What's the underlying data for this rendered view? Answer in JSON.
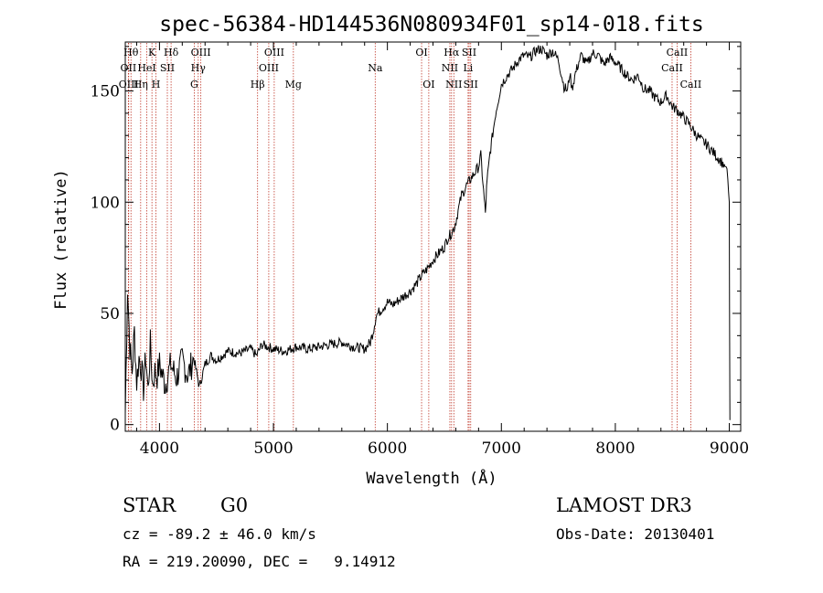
{
  "chart_data": {
    "type": "line",
    "title": "spec-56384-HD144536N080934F01_sp14-018.fits",
    "xlabel": "Wavelength (Å)",
    "ylabel": "Flux (relative)",
    "xlim": [
      3700,
      9100
    ],
    "ylim": [
      -3,
      172
    ],
    "xticks": [
      4000,
      5000,
      6000,
      7000,
      8000,
      9000
    ],
    "yticks": [
      0,
      50,
      100,
      150
    ],
    "grid": false,
    "series": [
      {
        "name": "flux",
        "x": [
          3700,
          3720,
          3740,
          3760,
          3780,
          3800,
          3820,
          3840,
          3860,
          3880,
          3900,
          3920,
          3940,
          3960,
          3980,
          4000,
          4050,
          4100,
          4150,
          4200,
          4250,
          4300,
          4350,
          4400,
          4450,
          4500,
          4600,
          4700,
          4800,
          4850,
          4900,
          5000,
          5100,
          5200,
          5300,
          5400,
          5500,
          5600,
          5700,
          5800,
          5850,
          5880,
          5900,
          5950,
          6000,
          6050,
          6100,
          6150,
          6200,
          6250,
          6300,
          6350,
          6400,
          6450,
          6500,
          6530,
          6560,
          6590,
          6620,
          6650,
          6700,
          6750,
          6800,
          6820,
          6850,
          6860,
          6870,
          6880,
          6900,
          6950,
          7000,
          7050,
          7100,
          7150,
          7200,
          7250,
          7300,
          7350,
          7400,
          7450,
          7500,
          7550,
          7580,
          7600,
          7620,
          7650,
          7680,
          7700,
          7750,
          7800,
          7850,
          7900,
          7950,
          8000,
          8050,
          8100,
          8150,
          8200,
          8250,
          8300,
          8350,
          8400,
          8450,
          8500,
          8550,
          8600,
          8650,
          8700,
          8750,
          8800,
          8850,
          8900,
          8950,
          8980,
          9000,
          9005
        ],
        "y": [
          5,
          62,
          35,
          24,
          42,
          19,
          30,
          26,
          16,
          31,
          15,
          36,
          18,
          24,
          22,
          27,
          18,
          27,
          21,
          29,
          22,
          30,
          17,
          27,
          31,
          29,
          33,
          32,
          34,
          31,
          36,
          34,
          33,
          35,
          34,
          35,
          36,
          37,
          35,
          34,
          37,
          43,
          49,
          52,
          55,
          54,
          56,
          58,
          60,
          63,
          67,
          70,
          74,
          77,
          80,
          84,
          86,
          89,
          96,
          103,
          108,
          112,
          116,
          121,
          101,
          95,
          106,
          112,
          122,
          140,
          153,
          157,
          160,
          164,
          166,
          165,
          168,
          169,
          166,
          168,
          164,
          152,
          150,
          158,
          151,
          158,
          163,
          166,
          162,
          167,
          166,
          162,
          165,
          163,
          160,
          157,
          155,
          157,
          151,
          150,
          147,
          145,
          148,
          143,
          141,
          138,
          135,
          131,
          128,
          126,
          123,
          120,
          117,
          115,
          100,
          2
        ]
      }
    ],
    "lines": [
      {
        "name": "Hθ",
        "x": 3750,
        "row": 1
      },
      {
        "name": "OII",
        "x": 3727,
        "row": 2
      },
      {
        "name": "OIII",
        "x": 3730,
        "row": 3
      },
      {
        "name": "K",
        "x": 3934,
        "row": 1
      },
      {
        "name": "HeI",
        "x": 3889,
        "row": 2
      },
      {
        "name": "Hη",
        "x": 3835,
        "row": 3
      },
      {
        "name": "H",
        "x": 3969,
        "row": 3
      },
      {
        "name": "SII",
        "x": 4069,
        "row": 2
      },
      {
        "name": "Hδ",
        "x": 4102,
        "row": 1
      },
      {
        "name": "OIII",
        "x": 4363,
        "row": 1
      },
      {
        "name": "Hγ",
        "x": 4340,
        "row": 2
      },
      {
        "name": "G",
        "x": 4305,
        "row": 3
      },
      {
        "name": "Hβ",
        "x": 4861,
        "row": 3
      },
      {
        "name": "OIII",
        "x": 5007,
        "row": 1
      },
      {
        "name": "OIII",
        "x": 4959,
        "row": 2
      },
      {
        "name": "Mg",
        "x": 5175,
        "row": 3
      },
      {
        "name": "Na",
        "x": 5893,
        "row": 2
      },
      {
        "name": "OI",
        "x": 6300,
        "row": 1
      },
      {
        "name": "OI",
        "x": 6363,
        "row": 3
      },
      {
        "name": "Hα",
        "x": 6563,
        "row": 1
      },
      {
        "name": "SII",
        "x": 6717,
        "row": 1
      },
      {
        "name": "NII",
        "x": 6548,
        "row": 2
      },
      {
        "name": "Li",
        "x": 6708,
        "row": 2
      },
      {
        "name": "NII",
        "x": 6583,
        "row": 3
      },
      {
        "name": "SII",
        "x": 6731,
        "row": 3
      },
      {
        "name": "CaII",
        "x": 8542,
        "row": 1
      },
      {
        "name": "CaII",
        "x": 8498,
        "row": 2
      },
      {
        "name": "CaII",
        "x": 8662,
        "row": 3
      }
    ]
  },
  "info": {
    "class_label": "STAR",
    "subclass": "G0",
    "redshift_text": "cz = -89.2 ± 46.0 km/s",
    "coords_text": "RA = 219.20090, DEC =   9.14912",
    "survey": "LAMOST DR3",
    "obs_date": "Obs-Date: 20130401"
  },
  "colors": {
    "line_marker": "#c0392b",
    "spectrum": "#000000",
    "axes": "#000000"
  }
}
